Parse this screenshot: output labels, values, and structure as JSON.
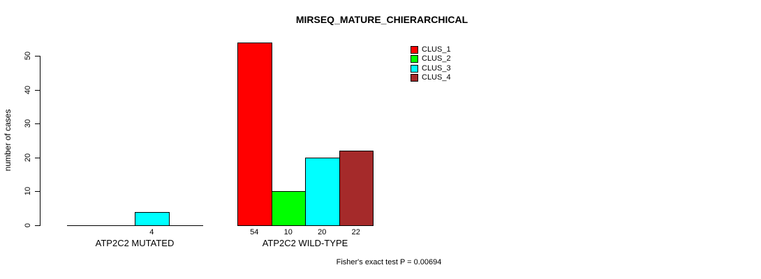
{
  "chart_data": {
    "type": "bar",
    "title": "MIRSEQ_MATURE_CHIERARCHICAL",
    "xlabel": "",
    "ylabel": "number of cases",
    "ylim": [
      0,
      50
    ],
    "yticks": [
      0,
      10,
      20,
      30,
      40,
      50
    ],
    "grid": false,
    "categories": [
      "ATP2C2 MUTATED",
      "ATP2C2 WILD-TYPE"
    ],
    "series": [
      {
        "name": "CLUS_1",
        "color": "#FF0000",
        "values": [
          0,
          54
        ]
      },
      {
        "name": "CLUS_2",
        "color": "#00FF00",
        "values": [
          0,
          10
        ]
      },
      {
        "name": "CLUS_3",
        "color": "#00FFFF",
        "values": [
          4,
          20
        ]
      },
      {
        "name": "CLUS_4",
        "color": "#A52A2A",
        "values": [
          0,
          22
        ]
      }
    ],
    "bar_value_labels": [
      [
        "",
        "",
        "4",
        ""
      ],
      [
        "54",
        "10",
        "20",
        "22"
      ]
    ],
    "legend": {
      "position": "top-right",
      "entries": [
        "CLUS_1",
        "CLUS_2",
        "CLUS_3",
        "CLUS_4"
      ]
    },
    "annotation": "Fisher's exact test P = 0.00694"
  }
}
